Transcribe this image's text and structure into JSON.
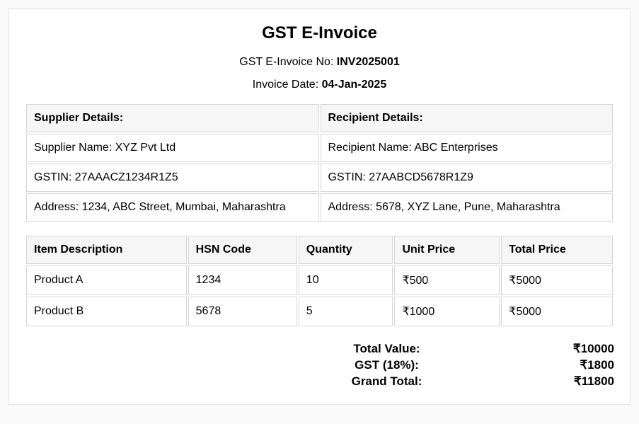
{
  "title": "GST E-Invoice",
  "invoice_no": {
    "label": "GST E-Invoice No: ",
    "value": "INV2025001"
  },
  "invoice_date": {
    "label": "Invoice Date: ",
    "value": "04-Jan-2025"
  },
  "parties": {
    "supplier": {
      "header": "Supplier Details:",
      "name": "Supplier Name: XYZ Pvt Ltd",
      "gstin": "GSTIN: 27AAACZ1234R1Z5",
      "address": "Address: 1234, ABC Street, Mumbai, Maharashtra"
    },
    "recipient": {
      "header": "Recipient Details:",
      "name": "Recipient Name: ABC Enterprises",
      "gstin": "GSTIN: 27AABCD5678R1Z9",
      "address": "Address: 5678, XYZ Lane, Pune, Maharashtra"
    }
  },
  "items": {
    "columns": [
      "Item Description",
      "HSN Code",
      "Quantity",
      "Unit Price",
      "Total Price"
    ],
    "rows": [
      [
        "Product A",
        "1234",
        "10",
        "₹500",
        "₹5000"
      ],
      [
        "Product B",
        "5678",
        "5",
        "₹1000",
        "₹5000"
      ]
    ]
  },
  "totals": {
    "total_value": {
      "label": "Total Value:",
      "value": "₹10000"
    },
    "gst": {
      "label": "GST (18%):",
      "value": "₹1800"
    },
    "grand_total": {
      "label": "Grand Total:",
      "value": "₹11800"
    }
  },
  "styling": {
    "background_color": "#fafafa",
    "card_background": "#ffffff",
    "border_color": "#d6d6d6",
    "card_border_color": "#e0e0e0",
    "header_bg": "#f6f6f6",
    "title_fontsize": 24,
    "body_fontsize": 16,
    "totals_fontsize": 17,
    "font_family": "Arial, Helvetica, sans-serif",
    "text_color": "#000000"
  }
}
